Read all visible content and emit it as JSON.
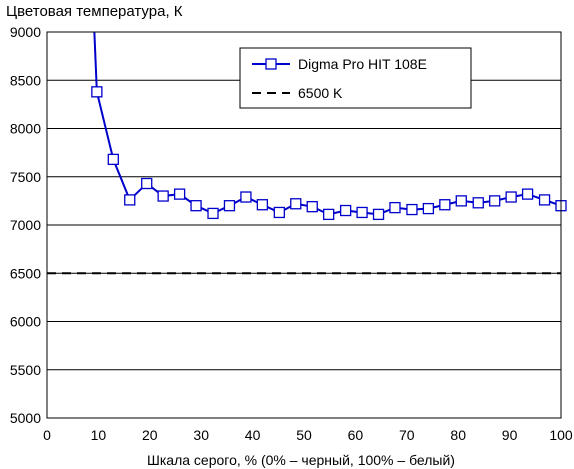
{
  "chart_data": {
    "type": "line",
    "title": "",
    "ylabel": "Цветовая температура, К",
    "xlabel": "Шкала серого, % (0% – черный, 100% – белый)",
    "xlim": [
      0,
      100
    ],
    "ylim": [
      5000,
      9000
    ],
    "x_ticks": [
      0,
      10,
      20,
      30,
      40,
      50,
      60,
      70,
      80,
      90,
      100
    ],
    "y_ticks": [
      5000,
      5500,
      6000,
      6500,
      7000,
      7500,
      8000,
      8500,
      9000
    ],
    "grid": "horizontal",
    "legend_position": "top-right",
    "colors": {
      "series": "#0000cc",
      "reference": "#000000",
      "grid": "#000000"
    },
    "series": [
      {
        "name": "Digma Pro HIT 108E",
        "x": [
          9.7,
          12.9,
          16.1,
          19.4,
          22.6,
          25.8,
          29.0,
          32.3,
          35.5,
          38.7,
          41.9,
          45.2,
          48.4,
          51.6,
          54.8,
          58.1,
          61.3,
          64.5,
          67.7,
          71.0,
          74.2,
          77.4,
          80.6,
          83.9,
          87.1,
          90.3,
          93.5,
          96.8,
          100
        ],
        "values": [
          8380,
          7680,
          7260,
          7430,
          7300,
          7320,
          7200,
          7120,
          7200,
          7290,
          7210,
          7130,
          7220,
          7190,
          7110,
          7150,
          7130,
          7110,
          7180,
          7160,
          7170,
          7210,
          7250,
          7230,
          7250,
          7290,
          7320,
          7260,
          7200
        ],
        "leading_x": 8.9,
        "leading_value": 9400
      },
      {
        "name": "6500 K",
        "style": "dashed",
        "x": [
          0,
          100
        ],
        "values": [
          6500,
          6500
        ]
      }
    ]
  }
}
